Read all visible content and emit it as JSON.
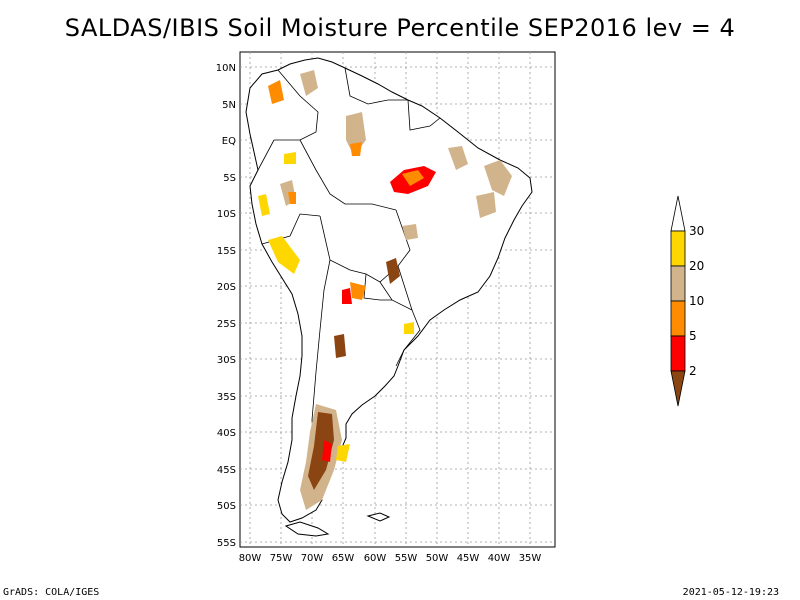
{
  "title": "SALDAS/IBIS Soil Moisture Percentile SEP2016 lev = 4",
  "footer": {
    "left": "GrADS: COLA/IGES",
    "right": "2021-05-12-19:23"
  },
  "map": {
    "lat_ticks": [
      "10N",
      "5N",
      "EQ",
      "5S",
      "10S",
      "15S",
      "20S",
      "25S",
      "30S",
      "35S",
      "40S",
      "45S",
      "50S",
      "55S"
    ],
    "lon_ticks": [
      "80W",
      "75W",
      "70W",
      "65W",
      "60W",
      "55W",
      "50W",
      "45W",
      "40W",
      "35W"
    ],
    "lon_range": [
      -82,
      -34
    ],
    "lat_range": [
      -56,
      12
    ],
    "grid": true
  },
  "colorbar": {
    "labels": [
      "2",
      "5",
      "10",
      "20",
      "30"
    ],
    "colors": [
      "#8b4513",
      "#ff0000",
      "#ff8c00",
      "#d2b48c",
      "#ffd700",
      "#ffffff"
    ]
  }
}
